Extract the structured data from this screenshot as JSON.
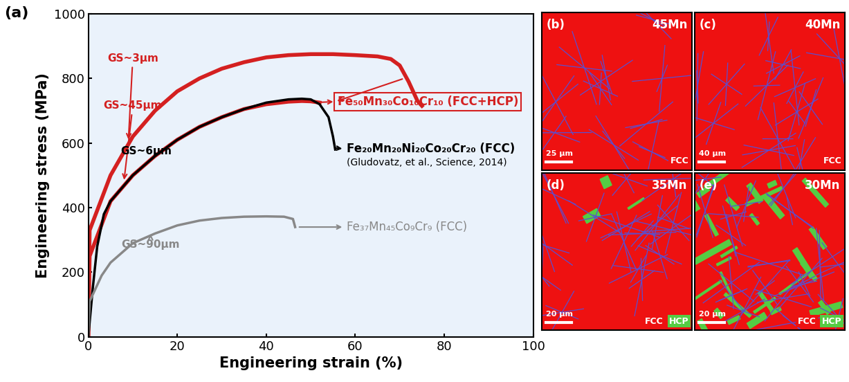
{
  "chart_data": {
    "type": "line",
    "panel_label": "(a)",
    "x_label": "Engineering strain (%)",
    "y_label": "Engineering stress (MPa)",
    "xlim": [
      0,
      100
    ],
    "xticks": [
      0,
      20,
      40,
      60,
      80,
      100
    ],
    "ylim": [
      0,
      1000
    ],
    "yticks": [
      0,
      200,
      400,
      600,
      800,
      1000
    ],
    "grid": false,
    "series": [
      {
        "name": "GS~3μm",
        "color": "#d42020",
        "x": [
          0,
          0.3,
          5,
          10,
          15,
          20,
          25,
          30,
          35,
          40,
          45,
          50,
          55,
          60,
          65,
          68,
          70,
          72,
          74,
          75
        ],
        "values": [
          0,
          330,
          500,
          620,
          700,
          760,
          800,
          830,
          850,
          865,
          872,
          875,
          875,
          872,
          868,
          860,
          840,
          790,
          730,
          715
        ]
      },
      {
        "name": "GS~45μm",
        "color": "#d42020",
        "x": [
          0,
          0.3,
          5,
          10,
          15,
          20,
          25,
          30,
          35,
          40,
          45,
          48,
          50,
          52
        ],
        "values": [
          0,
          250,
          420,
          500,
          560,
          610,
          650,
          680,
          705,
          720,
          728,
          730,
          729,
          725
        ]
      },
      {
        "name": "GS~6μm",
        "color": "#000000",
        "x": [
          0,
          1,
          2,
          3.5,
          5,
          10,
          15,
          20,
          25,
          30,
          35,
          40,
          45,
          48,
          50,
          52,
          54,
          55,
          55.5
        ],
        "values": [
          0,
          150,
          280,
          380,
          420,
          500,
          560,
          610,
          650,
          680,
          705,
          725,
          735,
          737,
          735,
          720,
          680,
          620,
          580
        ]
      },
      {
        "name": "GS~90μm",
        "color": "#888888",
        "x": [
          0,
          0.3,
          3,
          5,
          10,
          15,
          20,
          25,
          30,
          35,
          40,
          44,
          46,
          46.5
        ],
        "values": [
          0,
          110,
          190,
          230,
          290,
          320,
          345,
          360,
          368,
          372,
          373,
          372,
          365,
          340
        ]
      }
    ],
    "annotations": [
      {
        "text": "Fe₅₀Mn₃₀Co₁₀Cr₁₀ (FCC+HCP)",
        "color": "#d42020"
      },
      {
        "text": "Fe₂₀Mn₂₀Ni₂₀Co₂₀Cr₂₀ (FCC)",
        "color": "#000000"
      },
      {
        "text": "(Gludovatz, et al., Science, 2014)",
        "color": "#000000"
      },
      {
        "text": "Fe₃₇Mn₄₅Co₉Cr₉ (FCC)",
        "color": "#888888"
      }
    ]
  },
  "micrographs": [
    {
      "panel_label": "(b)",
      "label": "45Mn",
      "scale_bar": "25 μm",
      "phases": [
        "FCC"
      ]
    },
    {
      "panel_label": "(c)",
      "label": "40Mn",
      "scale_bar": "40 μm",
      "phases": [
        "FCC"
      ]
    },
    {
      "panel_label": "(d)",
      "label": "35Mn",
      "scale_bar": "20 μm",
      "phases": [
        "FCC",
        "HCP"
      ]
    },
    {
      "panel_label": "(e)",
      "label": "30Mn",
      "scale_bar": "20 μm",
      "phases": [
        "FCC",
        "HCP"
      ]
    }
  ],
  "phase_colors": {
    "FCC": "#ee1111",
    "HCP": "#55cc44"
  }
}
